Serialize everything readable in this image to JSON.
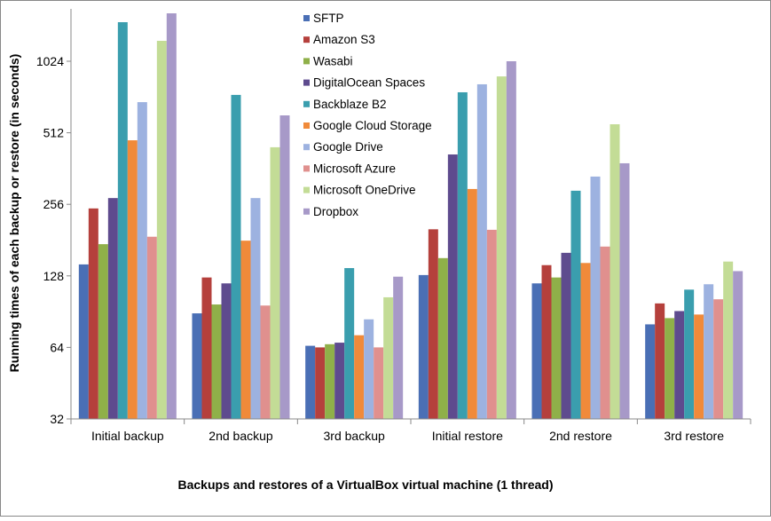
{
  "chart_data": {
    "type": "bar",
    "title": "",
    "xlabel": "Backups and restores of a VirtualBox virtual machine (1 thread)",
    "ylabel": "Running times of each backup or restore (in seconds)",
    "y_scale": "log2",
    "ylim": [
      32,
      1700
    ],
    "y_ticks": [
      32,
      64,
      128,
      256,
      512,
      1024
    ],
    "grid": false,
    "legend_position": "top-center",
    "categories": [
      "Initial backup",
      "2nd backup",
      "3rd backup",
      "Initial restore",
      "2nd restore",
      "3rd restore"
    ],
    "series": [
      {
        "name": "SFTP",
        "color": "#4a6fb5",
        "values": [
          143,
          89,
          65,
          129,
          119,
          80
        ]
      },
      {
        "name": "Amazon S3",
        "color": "#b5403c",
        "values": [
          246,
          126,
          64,
          201,
          142,
          98
        ]
      },
      {
        "name": "Wasabi",
        "color": "#8fb049",
        "values": [
          174,
          97,
          66,
          152,
          126,
          85
        ]
      },
      {
        "name": "DigitalOcean Spaces",
        "color": "#5e4b8e",
        "values": [
          272,
          119,
          67,
          415,
          160,
          91
        ]
      },
      {
        "name": "Backblaze B2",
        "color": "#3a9eae",
        "values": [
          1495,
          739,
          138,
          758,
          292,
          112
        ]
      },
      {
        "name": "Google Cloud Storage",
        "color": "#f08a3a",
        "values": [
          476,
          180,
          72,
          297,
          145,
          88
        ]
      },
      {
        "name": "Google Drive",
        "color": "#9db2e0",
        "values": [
          689,
          272,
          84,
          819,
          335,
          118
        ]
      },
      {
        "name": "Microsoft Azure",
        "color": "#e0908e",
        "values": [
          187,
          96,
          64,
          200,
          170,
          102
        ]
      },
      {
        "name": "Microsoft OneDrive",
        "color": "#c3dc96",
        "values": [
          1248,
          445,
          104,
          884,
          556,
          147
        ]
      },
      {
        "name": "Dropbox",
        "color": "#a799c8",
        "values": [
          1629,
          606,
          127,
          1024,
          381,
          134
        ]
      }
    ]
  }
}
